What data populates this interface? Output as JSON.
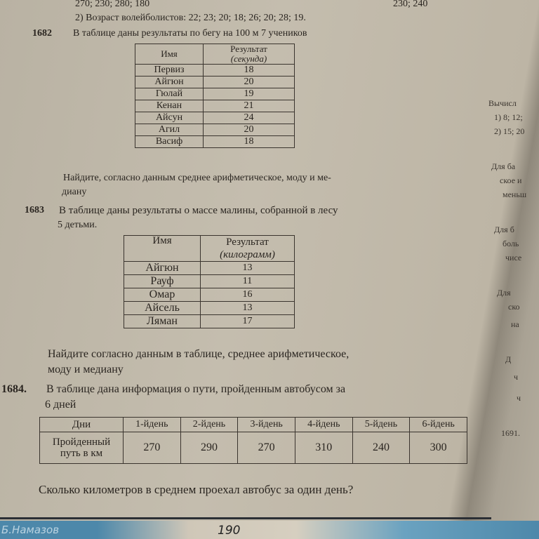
{
  "top_lines": {
    "line1": "270; 230; 280; 180",
    "line1_right": "230; 240",
    "line2": "2) Возраст волейболистов: 22; 23; 20; 18; 26; 20; 28; 19."
  },
  "p1682": {
    "number": "1682",
    "text": "В таблице даны результаты по бегу на 100 м 7 учеников",
    "table": {
      "headers": [
        "Имя",
        "Результат",
        "(секунда)"
      ],
      "rows": [
        [
          "Первиз",
          "18"
        ],
        [
          "Айгюн",
          "20"
        ],
        [
          "Гюлай",
          "19"
        ],
        [
          "Кенан",
          "21"
        ],
        [
          "Айсун",
          "24"
        ],
        [
          "Агил",
          "20"
        ],
        [
          "Васиф",
          "18"
        ]
      ]
    },
    "question_line1": "Найдите, согласно данным среднее арифметическое, моду и ме-",
    "question_line2": "диану"
  },
  "p1683": {
    "number": "1683",
    "text_line1": "В таблице даны результаты о массе малины, собранной в лесу",
    "text_line2": "5 детьми.",
    "table": {
      "headers": [
        "Имя",
        "Результат",
        "(килограмм)"
      ],
      "rows": [
        [
          "Айгюн",
          "13"
        ],
        [
          "Рауф",
          "11"
        ],
        [
          "Омар",
          "16"
        ],
        [
          "Айсель",
          "13"
        ],
        [
          "Ляман",
          "17"
        ]
      ]
    },
    "question_line1": "Найдите согласно данным в таблице, среднее арифметическое,",
    "question_line2": "моду и медиану"
  },
  "p1684": {
    "number": "1684.",
    "text_line1": "В таблице дана информация о пути, пройденным автобусом за",
    "text_line2": "6 дней",
    "table": {
      "row_header_1": "Дни",
      "row_header_2a": "Пройденный",
      "row_header_2b": "путь в км",
      "days": [
        "1-йдень",
        "2-йдень",
        "3-йдень",
        "4-йдень",
        "5-йдень",
        "6-йдень"
      ],
      "values": [
        "270",
        "290",
        "270",
        "310",
        "240",
        "300"
      ]
    },
    "question": "Сколько километров в среднем проехал автобус за один день?"
  },
  "right_page": [
    "Вычисл",
    "1) 8; 12;",
    "2) 15; 20",
    "Для ба",
    "ское и",
    "меньш",
    "Для б",
    "боль",
    "чисе",
    "Для",
    "ско",
    "на",
    "Д",
    "ч",
    "ч",
    "1691."
  ],
  "footer": {
    "author": "Б.Намазов",
    "page": "190"
  }
}
